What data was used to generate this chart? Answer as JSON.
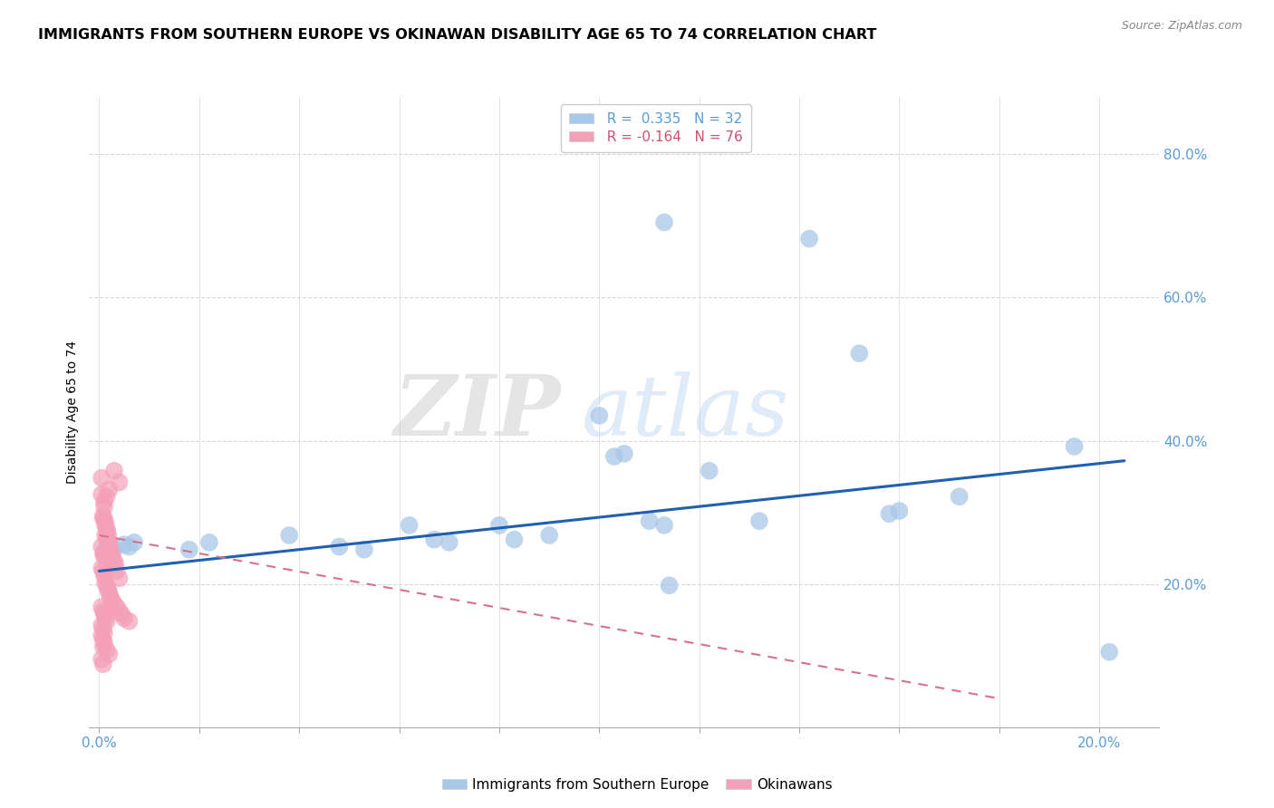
{
  "title": "IMMIGRANTS FROM SOUTHERN EUROPE VS OKINAWAN DISABILITY AGE 65 TO 74 CORRELATION CHART",
  "source": "Source: ZipAtlas.com",
  "ylabel": "Disability Age 65 to 74",
  "xlim": [
    -0.002,
    0.212
  ],
  "ylim": [
    0.0,
    0.88
  ],
  "yticks": [
    0.2,
    0.4,
    0.6,
    0.8
  ],
  "xticks": [
    0.0,
    0.02,
    0.04,
    0.06,
    0.08,
    0.1,
    0.12,
    0.14,
    0.16,
    0.18,
    0.2
  ],
  "xtick_labels": [
    "0.0%",
    "",
    "",
    "",
    "",
    "",
    "",
    "",
    "",
    "",
    "20.0%"
  ],
  "ytick_labels": [
    "20.0%",
    "40.0%",
    "60.0%",
    "80.0%"
  ],
  "blue_color": "#a8c8e8",
  "pink_color": "#f4a0b8",
  "trend_blue": "#2060b0",
  "trend_pink": "#d87090",
  "watermark_zip": "ZIP",
  "watermark_atlas": "atlas",
  "blue_scatter": [
    [
      0.001,
      0.245
    ],
    [
      0.002,
      0.235
    ],
    [
      0.003,
      0.248
    ],
    [
      0.005,
      0.255
    ],
    [
      0.006,
      0.252
    ],
    [
      0.007,
      0.258
    ],
    [
      0.018,
      0.248
    ],
    [
      0.022,
      0.258
    ],
    [
      0.038,
      0.268
    ],
    [
      0.048,
      0.252
    ],
    [
      0.053,
      0.248
    ],
    [
      0.062,
      0.282
    ],
    [
      0.067,
      0.262
    ],
    [
      0.07,
      0.258
    ],
    [
      0.08,
      0.282
    ],
    [
      0.083,
      0.262
    ],
    [
      0.09,
      0.268
    ],
    [
      0.1,
      0.435
    ],
    [
      0.103,
      0.378
    ],
    [
      0.105,
      0.382
    ],
    [
      0.11,
      0.288
    ],
    [
      0.113,
      0.282
    ],
    [
      0.114,
      0.198
    ],
    [
      0.122,
      0.358
    ],
    [
      0.132,
      0.288
    ],
    [
      0.142,
      0.682
    ],
    [
      0.152,
      0.522
    ],
    [
      0.113,
      0.705
    ],
    [
      0.158,
      0.298
    ],
    [
      0.16,
      0.302
    ],
    [
      0.172,
      0.322
    ],
    [
      0.195,
      0.392
    ],
    [
      0.202,
      0.105
    ]
  ],
  "pink_scatter": [
    [
      0.0005,
      0.348
    ],
    [
      0.001,
      0.308
    ],
    [
      0.0008,
      0.295
    ],
    [
      0.0012,
      0.288
    ],
    [
      0.0015,
      0.278
    ],
    [
      0.0018,
      0.268
    ],
    [
      0.002,
      0.258
    ],
    [
      0.0022,
      0.248
    ],
    [
      0.0025,
      0.242
    ],
    [
      0.003,
      0.232
    ],
    [
      0.0032,
      0.228
    ],
    [
      0.0035,
      0.218
    ],
    [
      0.004,
      0.208
    ],
    [
      0.0005,
      0.325
    ],
    [
      0.001,
      0.315
    ],
    [
      0.0015,
      0.322
    ],
    [
      0.002,
      0.332
    ],
    [
      0.0008,
      0.292
    ],
    [
      0.0012,
      0.282
    ],
    [
      0.0016,
      0.272
    ],
    [
      0.0005,
      0.252
    ],
    [
      0.0008,
      0.242
    ],
    [
      0.001,
      0.238
    ],
    [
      0.0012,
      0.268
    ],
    [
      0.0015,
      0.262
    ],
    [
      0.0018,
      0.258
    ],
    [
      0.002,
      0.242
    ],
    [
      0.0022,
      0.238
    ],
    [
      0.0025,
      0.232
    ],
    [
      0.0005,
      0.222
    ],
    [
      0.0008,
      0.218
    ],
    [
      0.001,
      0.212
    ],
    [
      0.0012,
      0.202
    ],
    [
      0.0015,
      0.198
    ],
    [
      0.0018,
      0.192
    ],
    [
      0.002,
      0.188
    ],
    [
      0.0022,
      0.182
    ],
    [
      0.0025,
      0.178
    ],
    [
      0.003,
      0.172
    ],
    [
      0.0035,
      0.168
    ],
    [
      0.004,
      0.162
    ],
    [
      0.0045,
      0.158
    ],
    [
      0.005,
      0.152
    ],
    [
      0.006,
      0.148
    ],
    [
      0.0005,
      0.168
    ],
    [
      0.0008,
      0.162
    ],
    [
      0.001,
      0.158
    ],
    [
      0.0012,
      0.152
    ],
    [
      0.0015,
      0.148
    ],
    [
      0.0005,
      0.142
    ],
    [
      0.0008,
      0.138
    ],
    [
      0.001,
      0.132
    ],
    [
      0.0005,
      0.128
    ],
    [
      0.0008,
      0.122
    ],
    [
      0.001,
      0.118
    ],
    [
      0.0008,
      0.112
    ],
    [
      0.0015,
      0.108
    ],
    [
      0.002,
      0.102
    ],
    [
      0.0005,
      0.095
    ],
    [
      0.0008,
      0.088
    ],
    [
      0.003,
      0.358
    ],
    [
      0.004,
      0.342
    ]
  ],
  "blue_trend_x": [
    0.0,
    0.205
  ],
  "blue_trend_y": [
    0.218,
    0.372
  ],
  "pink_trend_x": [
    0.0,
    0.18
  ],
  "pink_trend_y": [
    0.268,
    0.04
  ],
  "background_color": "#ffffff",
  "grid_color": "#d8d8d8",
  "title_fontsize": 11.5,
  "axis_label_fontsize": 10,
  "tick_fontsize": 11,
  "source_fontsize": 9
}
